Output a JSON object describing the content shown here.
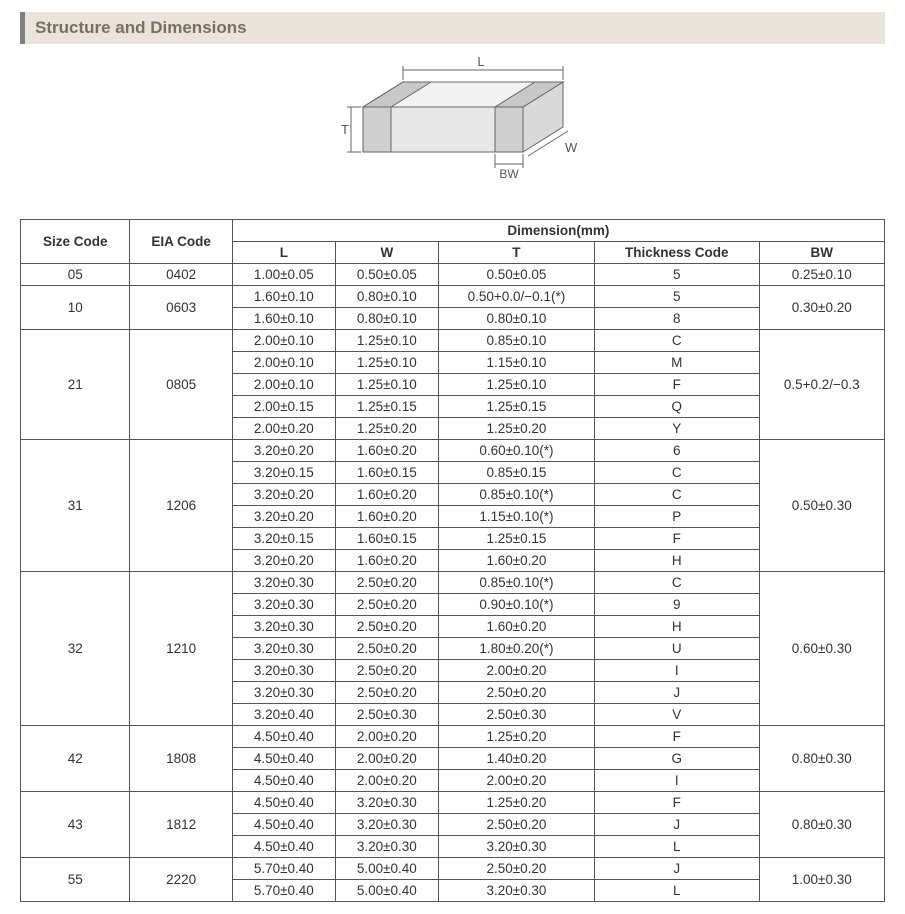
{
  "section_title": "Structure and Dimensions",
  "diagram": {
    "labels": {
      "L": "L",
      "W": "W",
      "T": "T",
      "BW": "BW"
    },
    "stroke": "#666666",
    "fill_top": "#f2f2f2",
    "fill_side": "#d9d9d9",
    "fill_front": "#e8e8e8",
    "band_fill": "#cfcfcf"
  },
  "table": {
    "header": {
      "size_code": "Size Code",
      "eia_code": "EIA Code",
      "dimension_group": "Dimension(mm)",
      "L": "L",
      "W": "W",
      "T": "T",
      "thickness_code": "Thickness Code",
      "BW": "BW"
    },
    "groups": [
      {
        "size_code": "05",
        "eia_code": "0402",
        "bw": "0.25±0.10",
        "rows": [
          {
            "L": "1.00±0.05",
            "W": "0.50±0.05",
            "T": "0.50±0.05",
            "tc": "5"
          }
        ]
      },
      {
        "size_code": "10",
        "eia_code": "0603",
        "bw": "0.30±0.20",
        "rows": [
          {
            "L": "1.60±0.10",
            "W": "0.80±0.10",
            "T": "0.50+0.0/−0.1(*)",
            "tc": "5"
          },
          {
            "L": "1.60±0.10",
            "W": "0.80±0.10",
            "T": "0.80±0.10",
            "tc": "8"
          }
        ]
      },
      {
        "size_code": "21",
        "eia_code": "0805",
        "bw": "0.5+0.2/−0.3",
        "rows": [
          {
            "L": "2.00±0.10",
            "W": "1.25±0.10",
            "T": "0.85±0.10",
            "tc": "C"
          },
          {
            "L": "2.00±0.10",
            "W": "1.25±0.10",
            "T": "1.15±0.10",
            "tc": "M"
          },
          {
            "L": "2.00±0.10",
            "W": "1.25±0.10",
            "T": "1.25±0.10",
            "tc": "F"
          },
          {
            "L": "2.00±0.15",
            "W": "1.25±0.15",
            "T": "1.25±0.15",
            "tc": "Q"
          },
          {
            "L": "2.00±0.20",
            "W": "1.25±0.20",
            "T": "1.25±0.20",
            "tc": "Y"
          }
        ]
      },
      {
        "size_code": "31",
        "eia_code": "1206",
        "bw": "0.50±0.30",
        "rows": [
          {
            "L": "3.20±0.20",
            "W": "1.60±0.20",
            "T": "0.60±0.10(*)",
            "tc": "6"
          },
          {
            "L": "3.20±0.15",
            "W": "1.60±0.15",
            "T": "0.85±0.15",
            "tc": "C"
          },
          {
            "L": "3.20±0.20",
            "W": "1.60±0.20",
            "T": "0.85±0.10(*)",
            "tc": "C"
          },
          {
            "L": "3.20±0.20",
            "W": "1.60±0.20",
            "T": "1.15±0.10(*)",
            "tc": "P"
          },
          {
            "L": "3.20±0.15",
            "W": "1.60±0.15",
            "T": "1.25±0.15",
            "tc": "F"
          },
          {
            "L": "3.20±0.20",
            "W": "1.60±0.20",
            "T": "1.60±0.20",
            "tc": "H"
          }
        ]
      },
      {
        "size_code": "32",
        "eia_code": "1210",
        "bw": "0.60±0.30",
        "rows": [
          {
            "L": "3.20±0.30",
            "W": "2.50±0.20",
            "T": "0.85±0.10(*)",
            "tc": "C"
          },
          {
            "L": "3.20±0.30",
            "W": "2.50±0.20",
            "T": "0.90±0.10(*)",
            "tc": "9"
          },
          {
            "L": "3.20±0.30",
            "W": "2.50±0.20",
            "T": "1.60±0.20",
            "tc": "H"
          },
          {
            "L": "3.20±0.30",
            "W": "2.50±0.20",
            "T": "1.80±0.20(*)",
            "tc": "U"
          },
          {
            "L": "3.20±0.30",
            "W": "2.50±0.20",
            "T": "2.00±0.20",
            "tc": "I"
          },
          {
            "L": "3.20±0.30",
            "W": "2.50±0.20",
            "T": "2.50±0.20",
            "tc": "J"
          },
          {
            "L": "3.20±0.40",
            "W": "2.50±0.30",
            "T": "2.50±0.30",
            "tc": "V"
          }
        ]
      },
      {
        "size_code": "42",
        "eia_code": "1808",
        "bw": "0.80±0.30",
        "rows": [
          {
            "L": "4.50±0.40",
            "W": "2.00±0.20",
            "T": "1.25±0.20",
            "tc": "F"
          },
          {
            "L": "4.50±0.40",
            "W": "2.00±0.20",
            "T": "1.40±0.20",
            "tc": "G"
          },
          {
            "L": "4.50±0.40",
            "W": "2.00±0.20",
            "T": "2.00±0.20",
            "tc": "I"
          }
        ]
      },
      {
        "size_code": "43",
        "eia_code": "1812",
        "bw": "0.80±0.30",
        "rows": [
          {
            "L": "4.50±0.40",
            "W": "3.20±0.30",
            "T": "1.25±0.20",
            "tc": "F"
          },
          {
            "L": "4.50±0.40",
            "W": "3.20±0.30",
            "T": "2.50±0.20",
            "tc": "J"
          },
          {
            "L": "4.50±0.40",
            "W": "3.20±0.30",
            "T": "3.20±0.30",
            "tc": "L"
          }
        ]
      },
      {
        "size_code": "55",
        "eia_code": "2220",
        "bw": "1.00±0.30",
        "rows": [
          {
            "L": "5.70±0.40",
            "W": "5.00±0.40",
            "T": "2.50±0.20",
            "tc": "J"
          },
          {
            "L": "5.70±0.40",
            "W": "5.00±0.40",
            "T": "3.20±0.30",
            "tc": "L"
          }
        ]
      }
    ]
  }
}
